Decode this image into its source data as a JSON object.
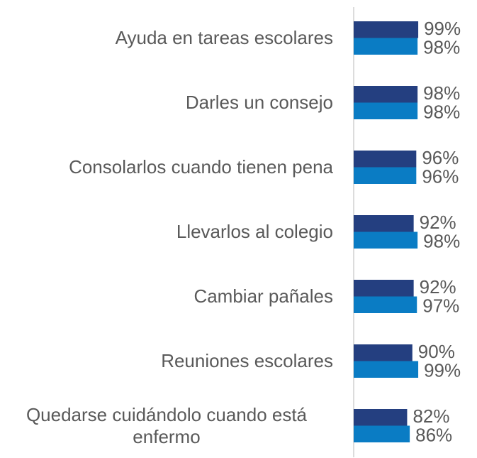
{
  "chart_data": {
    "type": "bar",
    "orientation": "horizontal",
    "categories": [
      "Ayuda en tareas escolares",
      "Darles un consejo",
      "Consolarlos cuando tienen pena",
      "Llevarlos al colegio",
      "Cambiar pañales",
      "Reuniones escolares",
      "Quedarse cuidándolo cuando está enfermo"
    ],
    "series": [
      {
        "color": "#243f80",
        "values": [
          99,
          98,
          96,
          92,
          92,
          90,
          82
        ],
        "value_labels": [
          "99%",
          "98%",
          "96%",
          "92%",
          "92%",
          "90%",
          "82%"
        ]
      },
      {
        "color": "#0a7cc4",
        "values": [
          98,
          98,
          96,
          98,
          97,
          99,
          86
        ],
        "value_labels": [
          "98%",
          "98%",
          "96%",
          "98%",
          "97%",
          "99%",
          "86%"
        ]
      }
    ],
    "xlim": [
      0,
      100
    ]
  }
}
